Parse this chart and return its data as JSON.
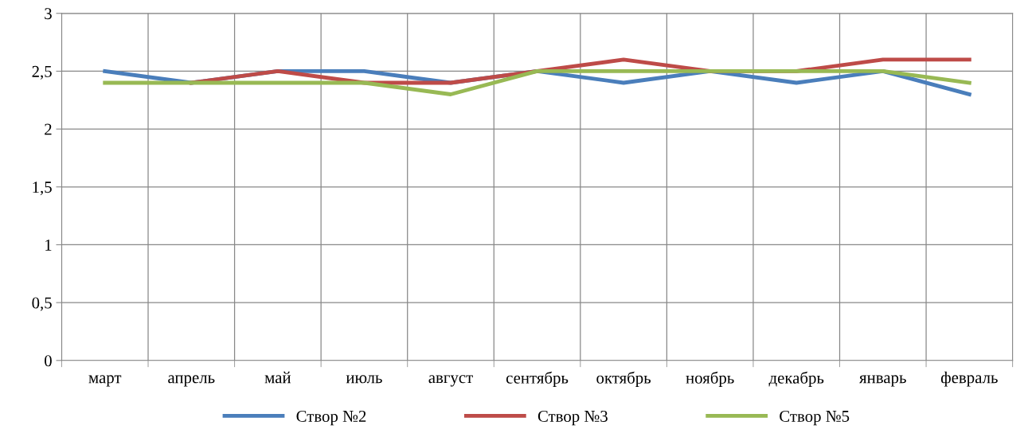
{
  "chart_data": {
    "type": "line",
    "categories": [
      "март",
      "апрель",
      "май",
      "июль",
      "август",
      "сентябрь",
      "октябрь",
      "ноябрь",
      "декабрь",
      "январь",
      "февраль"
    ],
    "series": [
      {
        "name": "Створ №2",
        "color": "#4a7ebb",
        "values": [
          2.5,
          2.4,
          2.5,
          2.5,
          2.4,
          2.5,
          2.4,
          2.5,
          2.4,
          2.5,
          2.3
        ]
      },
      {
        "name": "Створ №3",
        "color": "#be4b48",
        "values": [
          null,
          2.4,
          2.5,
          2.4,
          2.4,
          2.5,
          2.6,
          2.5,
          2.5,
          2.6,
          2.6
        ]
      },
      {
        "name": "Створ №5",
        "color": "#98b954",
        "values": [
          2.4,
          2.4,
          2.4,
          2.4,
          2.3,
          2.5,
          2.5,
          2.5,
          2.5,
          2.5,
          2.4
        ]
      }
    ],
    "ylim": [
      0,
      3
    ],
    "yticks": [
      0,
      {
        "value": 0.5,
        "label": "0,5"
      },
      1,
      {
        "value": 1.5,
        "label": "1,5"
      },
      2,
      {
        "value": 2.5,
        "label": "2,5"
      },
      3
    ],
    "grid": true,
    "legend": "bottom",
    "marker": "none",
    "line_style": "solid"
  }
}
